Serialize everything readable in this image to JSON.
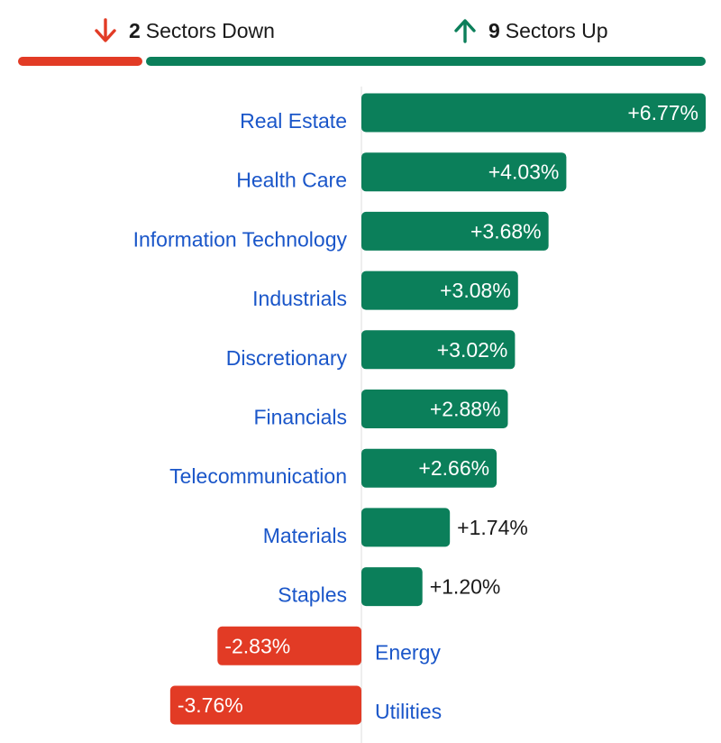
{
  "summary": {
    "down": {
      "count": "2",
      "label": "Sectors Down",
      "icon": "arrow-down-icon"
    },
    "up": {
      "count": "9",
      "label": "Sectors Up",
      "icon": "arrow-up-icon"
    }
  },
  "colors": {
    "positive": "#0b7f5a",
    "negative": "#e23b25",
    "label_link": "#1a56c9",
    "value_text_dark": "#1a1a1a",
    "value_text_light": "#ffffff",
    "axis": "#dddddd"
  },
  "chart_data": {
    "type": "bar",
    "orientation": "horizontal",
    "title": "",
    "xlabel": "",
    "ylabel": "",
    "unit": "%",
    "categories": [
      "Real Estate",
      "Health Care",
      "Information Technology",
      "Industrials",
      "Discretionary",
      "Financials",
      "Telecommunication",
      "Materials",
      "Staples",
      "Energy",
      "Utilities"
    ],
    "values": [
      6.77,
      4.03,
      3.68,
      3.08,
      3.02,
      2.88,
      2.66,
      1.74,
      1.2,
      -2.83,
      -3.76
    ],
    "value_labels": [
      "+6.77%",
      "+4.03%",
      "+3.68%",
      "+3.08%",
      "+3.02%",
      "+2.88%",
      "+2.66%",
      "+1.74%",
      "+1.20%",
      "-2.83%",
      "-3.76%"
    ],
    "grid": false,
    "legend": "none"
  }
}
